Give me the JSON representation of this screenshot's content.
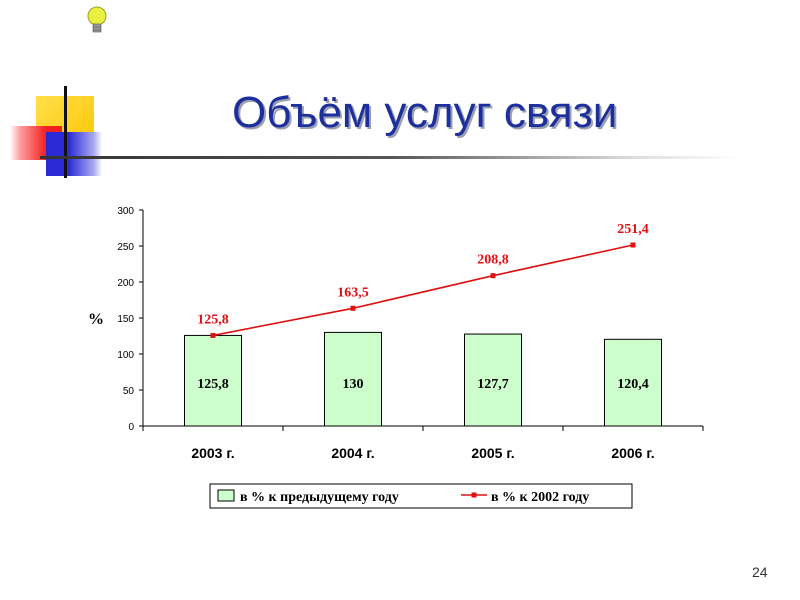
{
  "slide": {
    "title": "Объём услуг связи",
    "page_number": "24",
    "icon": "lightbulb-icon"
  },
  "colors": {
    "title": "#1d2f9c",
    "bar_fill": "#ccffcc",
    "line": "#e01010",
    "deco_yellow": "#ffd21a",
    "deco_red": "#f22020",
    "deco_blue": "#2b2bd6"
  },
  "chart_data": {
    "type": "bar",
    "categories": [
      "2003 г.",
      "2004 г.",
      "2005 г.",
      "2006 г."
    ],
    "ylabel": "%",
    "ylim": [
      0,
      300
    ],
    "yticks": [
      0,
      50,
      100,
      150,
      200,
      250,
      300
    ],
    "grid": false,
    "legend_position": "bottom",
    "series": [
      {
        "name": "в % к предыдущему году",
        "kind": "bar",
        "values": [
          125.8,
          130,
          127.7,
          120.4
        ],
        "labels": [
          "125,8",
          "130",
          "127,7",
          "120,4"
        ]
      },
      {
        "name": "в % к 2002 году",
        "kind": "line",
        "values": [
          125.8,
          163.5,
          208.8,
          251.4
        ],
        "labels": [
          "125,8",
          "163,5",
          "208,8",
          "251,4"
        ]
      }
    ]
  }
}
